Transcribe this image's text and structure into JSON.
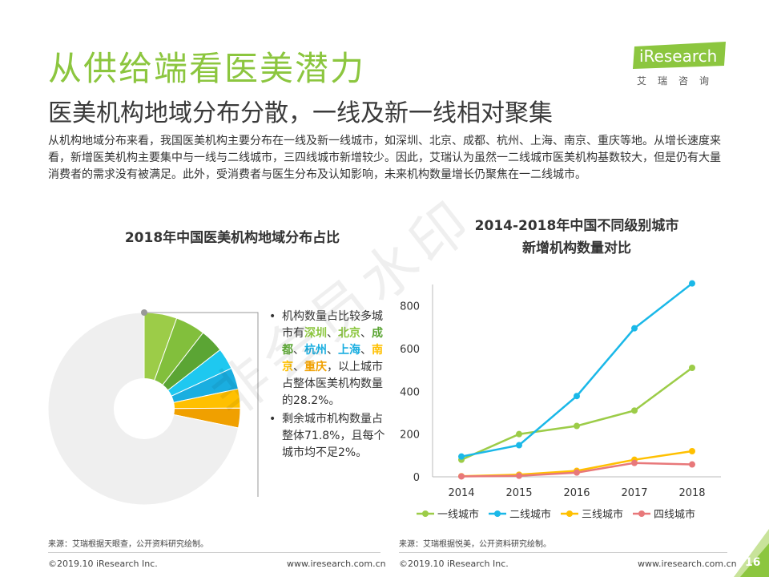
{
  "header": {
    "title": "从供给端看医美潜力",
    "subtitle": "医美机构地域分布分散，一线及新一线相对聚集",
    "logo_text": "iResearch",
    "logo_sub": "艾瑞咨询",
    "logo_color": "#8cc63f"
  },
  "intro_text": "从机构地域分布来看，我国医美机构主要分布在一线及新一线城市，如深圳、北京、成都、杭州、上海、南京、重庆等地。从增长速度来看，新增医美机构主要集中与一线与二线城市，三四线城市新增较少。因此，艾瑞认为虽然一二线城市医美机构基数较大，但是仍有大量消费者的需求没有被满足。此外，受消费者与医生分布及认知影响，未来机构数量增长仍聚焦在一二线城市。",
  "pie_panel": {
    "title": "2018年中国医美机构地域分布占比",
    "bullet1": {
      "prefix": "机构数量占比较多城市有",
      "cities": [
        {
          "name": "深圳",
          "color": "#8cc63f"
        },
        {
          "name": "北京",
          "color": "#8cc63f"
        },
        {
          "name": "成都",
          "color": "#5ba534"
        },
        {
          "name": "杭州",
          "color": "#1aaee0"
        },
        {
          "name": "上海",
          "color": "#1aaee0"
        },
        {
          "name": "南京",
          "color": "#ffc000"
        },
        {
          "name": "重庆",
          "color": "#f0a000"
        }
      ],
      "sep": "、",
      "suffix": "，以上城市占整体医美机构数量的28.2%。"
    },
    "bullet2": "剩余城市机构数量占整体71.8%，且每个城市均不足2%。",
    "source": "来源：艾瑞根据天眼查，公开资料研究绘制。"
  },
  "line_panel": {
    "title_line1": "2014-2018年中国不同级别城市",
    "title_line2": "新增机构数量对比",
    "source": "来源：艾瑞根据悦美，公开资料研究绘制。"
  },
  "chart_data": [
    {
      "type": "pie",
      "title": "2018年中国医美机构地域分布占比",
      "donut": true,
      "slices": [
        {
          "label": "深圳",
          "value": 5.5,
          "color": "#9ccc48"
        },
        {
          "label": "北京",
          "value": 5.0,
          "color": "#82bf3c"
        },
        {
          "label": "成都",
          "value": 4.0,
          "color": "#5ba534"
        },
        {
          "label": "杭州",
          "value": 3.6,
          "color": "#1ec8f0"
        },
        {
          "label": "上海",
          "value": 3.6,
          "color": "#1aaee0"
        },
        {
          "label": "南京",
          "value": 3.2,
          "color": "#ffc000"
        },
        {
          "label": "重庆",
          "value": 3.3,
          "color": "#f0a000"
        },
        {
          "label": "其他",
          "value": 71.8,
          "color": "#efefef"
        }
      ]
    },
    {
      "type": "line",
      "title": "2014-2018年中国不同级别城市新增机构数量对比",
      "x": [
        "2014",
        "2015",
        "2016",
        "2017",
        "2018"
      ],
      "ylim": [
        0,
        900
      ],
      "yticks": [
        0,
        200,
        400,
        600,
        800
      ],
      "legend_position": "bottom",
      "grid": false,
      "series": [
        {
          "name": "一线城市",
          "color": "#9ccc48",
          "values": [
            80,
            200,
            238,
            310,
            510
          ]
        },
        {
          "name": "二线城市",
          "color": "#1ab8e8",
          "values": [
            95,
            148,
            378,
            695,
            905
          ]
        },
        {
          "name": "三线城市",
          "color": "#ffc000",
          "values": [
            3,
            10,
            28,
            80,
            120
          ]
        },
        {
          "name": "四线城市",
          "color": "#e8787a",
          "values": [
            2,
            5,
            20,
            65,
            58
          ]
        }
      ]
    }
  ],
  "footer": {
    "left_copyright": "©2019.10 iResearch Inc.",
    "left_url": "www.iresearch.com.cn",
    "right_copyright": "©2019.10 iResearch Inc.",
    "right_url": "www.iresearch.com.cn",
    "page": "16"
  },
  "watermark": "非会员水印"
}
